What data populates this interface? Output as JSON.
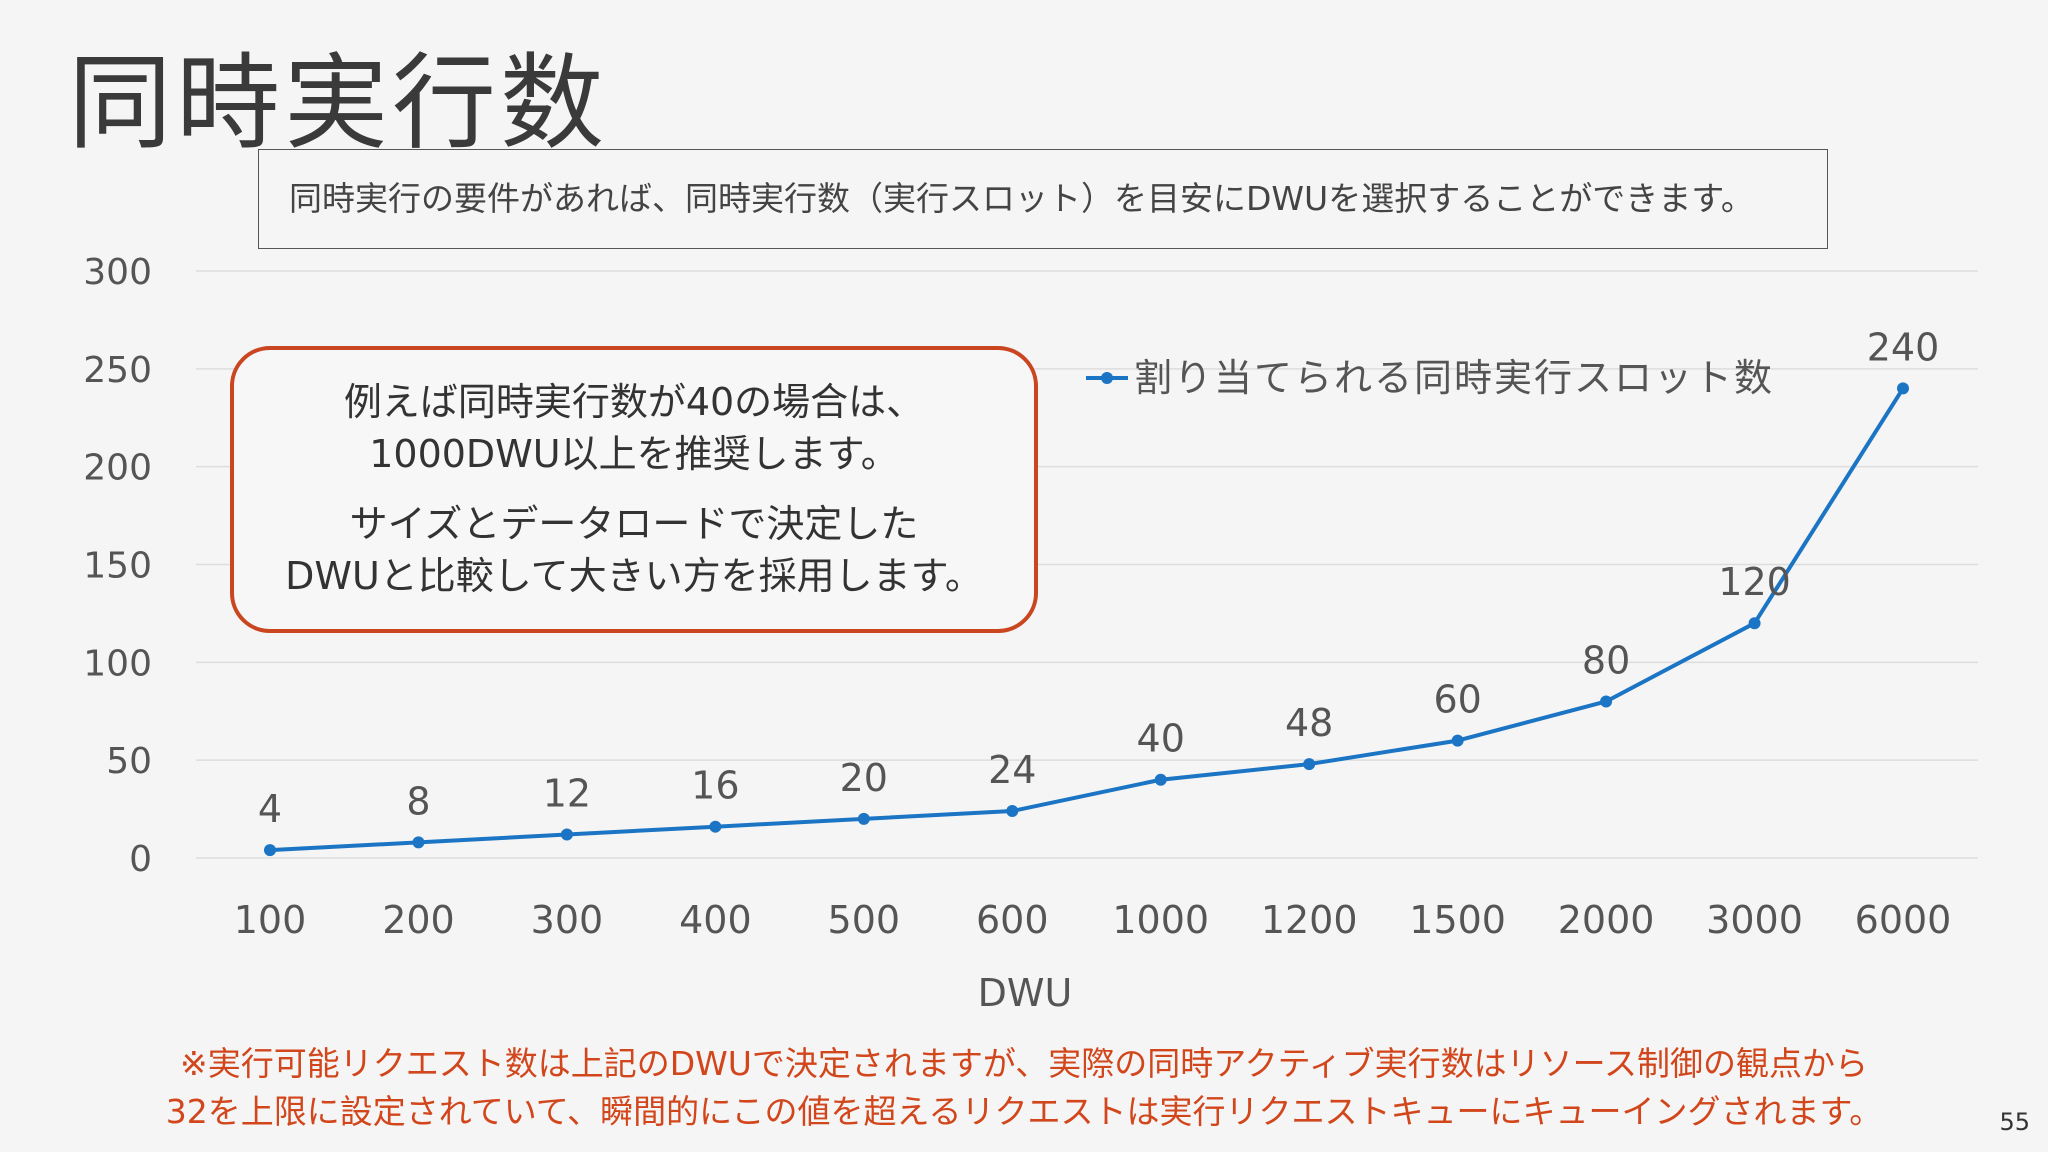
{
  "slide": {
    "title": "同時実行数",
    "note": "同時実行の要件があれば、同時実行数（実行スロット）を目安にDWUを選択することができます。",
    "callout": {
      "lines_1": [
        "例えば同時実行数が40の場合は、",
        "1000DWU以上を推奨します。"
      ],
      "lines_2": [
        "サイズとデータロードで決定した",
        "DWUと比較して大きい方を採用します。"
      ]
    },
    "footnote": [
      "※実行可能リクエスト数は上記のDWUで決定されますが、実際の同時アクティブ実行数はリソース制御の観点から",
      "32を上限に設定されていて、瞬間的にこの値を超えるリクエストは実行リクエストキューにキューイングされます。"
    ],
    "page_number": "55"
  },
  "colors": {
    "line": "#1b75c4",
    "accent": "#c94620",
    "footnote": "#d2461c",
    "grid": "#dddddd",
    "text": "#555555"
  },
  "chart_data": {
    "type": "line",
    "title": "",
    "xlabel": "DWU",
    "ylabel": "",
    "categories": [
      "100",
      "200",
      "300",
      "400",
      "500",
      "600",
      "1000",
      "1200",
      "1500",
      "2000",
      "3000",
      "6000"
    ],
    "series": [
      {
        "name": "割り当てられる同時実行スロット数",
        "values": [
          4,
          8,
          12,
          16,
          20,
          24,
          40,
          48,
          60,
          80,
          120,
          240
        ]
      }
    ],
    "ylim": [
      0,
      300
    ],
    "yticks": [
      0,
      50,
      100,
      150,
      200,
      250,
      300
    ],
    "grid": true,
    "legend": "top-right",
    "data_labels": true
  }
}
